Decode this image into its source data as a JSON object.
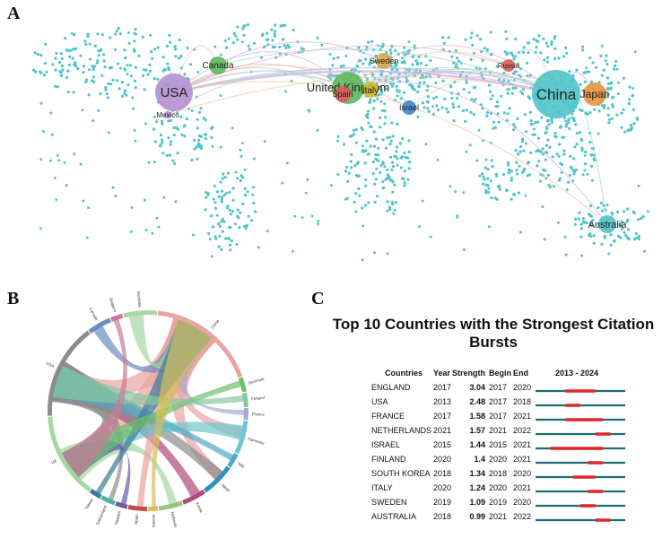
{
  "panels": {
    "a": "A",
    "b": "B",
    "c": "C"
  },
  "colors": {
    "dots": "#4fc4c9",
    "bar_base": "#1c6e73",
    "bar_burst": "#e02626"
  },
  "map": {
    "nodes": [
      {
        "label": "USA",
        "color": "#b58fd1"
      },
      {
        "label": "Canada",
        "color": "#5cb85c"
      },
      {
        "label": "Mexico",
        "color": "#b58fd1"
      },
      {
        "label": "United Kingdom",
        "color": "#5cb85c"
      },
      {
        "label": "Sweden",
        "color": "#d6a74a"
      },
      {
        "label": "Spain",
        "color": "#e05a5a"
      },
      {
        "label": "Italy",
        "color": "#c9b832"
      },
      {
        "label": "Israel",
        "color": "#3e87c9"
      },
      {
        "label": "Russia",
        "color": "#e05a5a"
      },
      {
        "label": "China",
        "color": "#4fc4c9"
      },
      {
        "label": "Japan",
        "color": "#e8923a"
      },
      {
        "label": "Australia",
        "color": "#4fc4c9"
      }
    ]
  },
  "chord": {
    "segments": [
      {
        "label": "China",
        "color": "#e9a4a0"
      },
      {
        "label": "Denmark",
        "color": "#6bbf6b"
      },
      {
        "label": "Finland",
        "color": "#88c7a0"
      },
      {
        "label": "France",
        "color": "#a9a9d1"
      },
      {
        "label": "Germany",
        "color": "#6ec6cf"
      },
      {
        "label": "Italy",
        "color": "#4fa8c9"
      },
      {
        "label": "Japan",
        "color": "#2f90c0"
      },
      {
        "label": "Korea",
        "color": "#b14a7a"
      },
      {
        "label": "Netherlands",
        "color": "#9cc47a"
      },
      {
        "label": "Norway",
        "color": "#d4c05a"
      },
      {
        "label": "Spain",
        "color": "#c94a4a"
      },
      {
        "label": "Sweden",
        "color": "#6a5aa8"
      },
      {
        "label": "Switzerland",
        "color": "#4fb39a"
      },
      {
        "label": "Taiwan",
        "color": "#3a7a9a"
      },
      {
        "label": "UK",
        "color": "#a4d6a0"
      },
      {
        "label": "USA",
        "color": "#8c8c8c"
      },
      {
        "label": "Canada",
        "color": "#6c8cbf"
      },
      {
        "label": "Belgium",
        "color": "#c97a9a"
      },
      {
        "label": "Australia",
        "color": "#a7d9a3"
      }
    ]
  },
  "chart_data": {
    "type": "table",
    "title": "Top 10 Countries with the Strongest Citation Bursts",
    "range_label": "2013 - 2024",
    "range_start": 2013,
    "range_end": 2024,
    "headers": {
      "countries": "Countries",
      "year": "Year",
      "strength": "Strength",
      "begin": "Begin",
      "end": "End"
    },
    "rows": [
      {
        "country": "ENGLAND",
        "year": "2017",
        "strength": "3.04",
        "begin": "2017",
        "end": "2020"
      },
      {
        "country": "USA",
        "year": "2013",
        "strength": "2.48",
        "begin": "2017",
        "end": "2018"
      },
      {
        "country": "FRANCE",
        "year": "2017",
        "strength": "1.58",
        "begin": "2017",
        "end": "2021"
      },
      {
        "country": "NETHERLANDS",
        "year": "2021",
        "strength": "1.57",
        "begin": "2021",
        "end": "2022"
      },
      {
        "country": "ISRAEL",
        "year": "2015",
        "strength": "1.44",
        "begin": "2015",
        "end": "2021"
      },
      {
        "country": "FINLAND",
        "year": "2020",
        "strength": "1.4",
        "begin": "2020",
        "end": "2021"
      },
      {
        "country": "SOUTH KOREA",
        "year": "2018",
        "strength": "1.34",
        "begin": "2018",
        "end": "2020"
      },
      {
        "country": "ITALY",
        "year": "2020",
        "strength": "1.24",
        "begin": "2020",
        "end": "2021"
      },
      {
        "country": "SWEDEN",
        "year": "2019",
        "strength": "1.09",
        "begin": "2019",
        "end": "2020"
      },
      {
        "country": "AUSTRALIA",
        "year": "2018",
        "strength": "0.99",
        "begin": "2021",
        "end": "2022"
      }
    ]
  }
}
